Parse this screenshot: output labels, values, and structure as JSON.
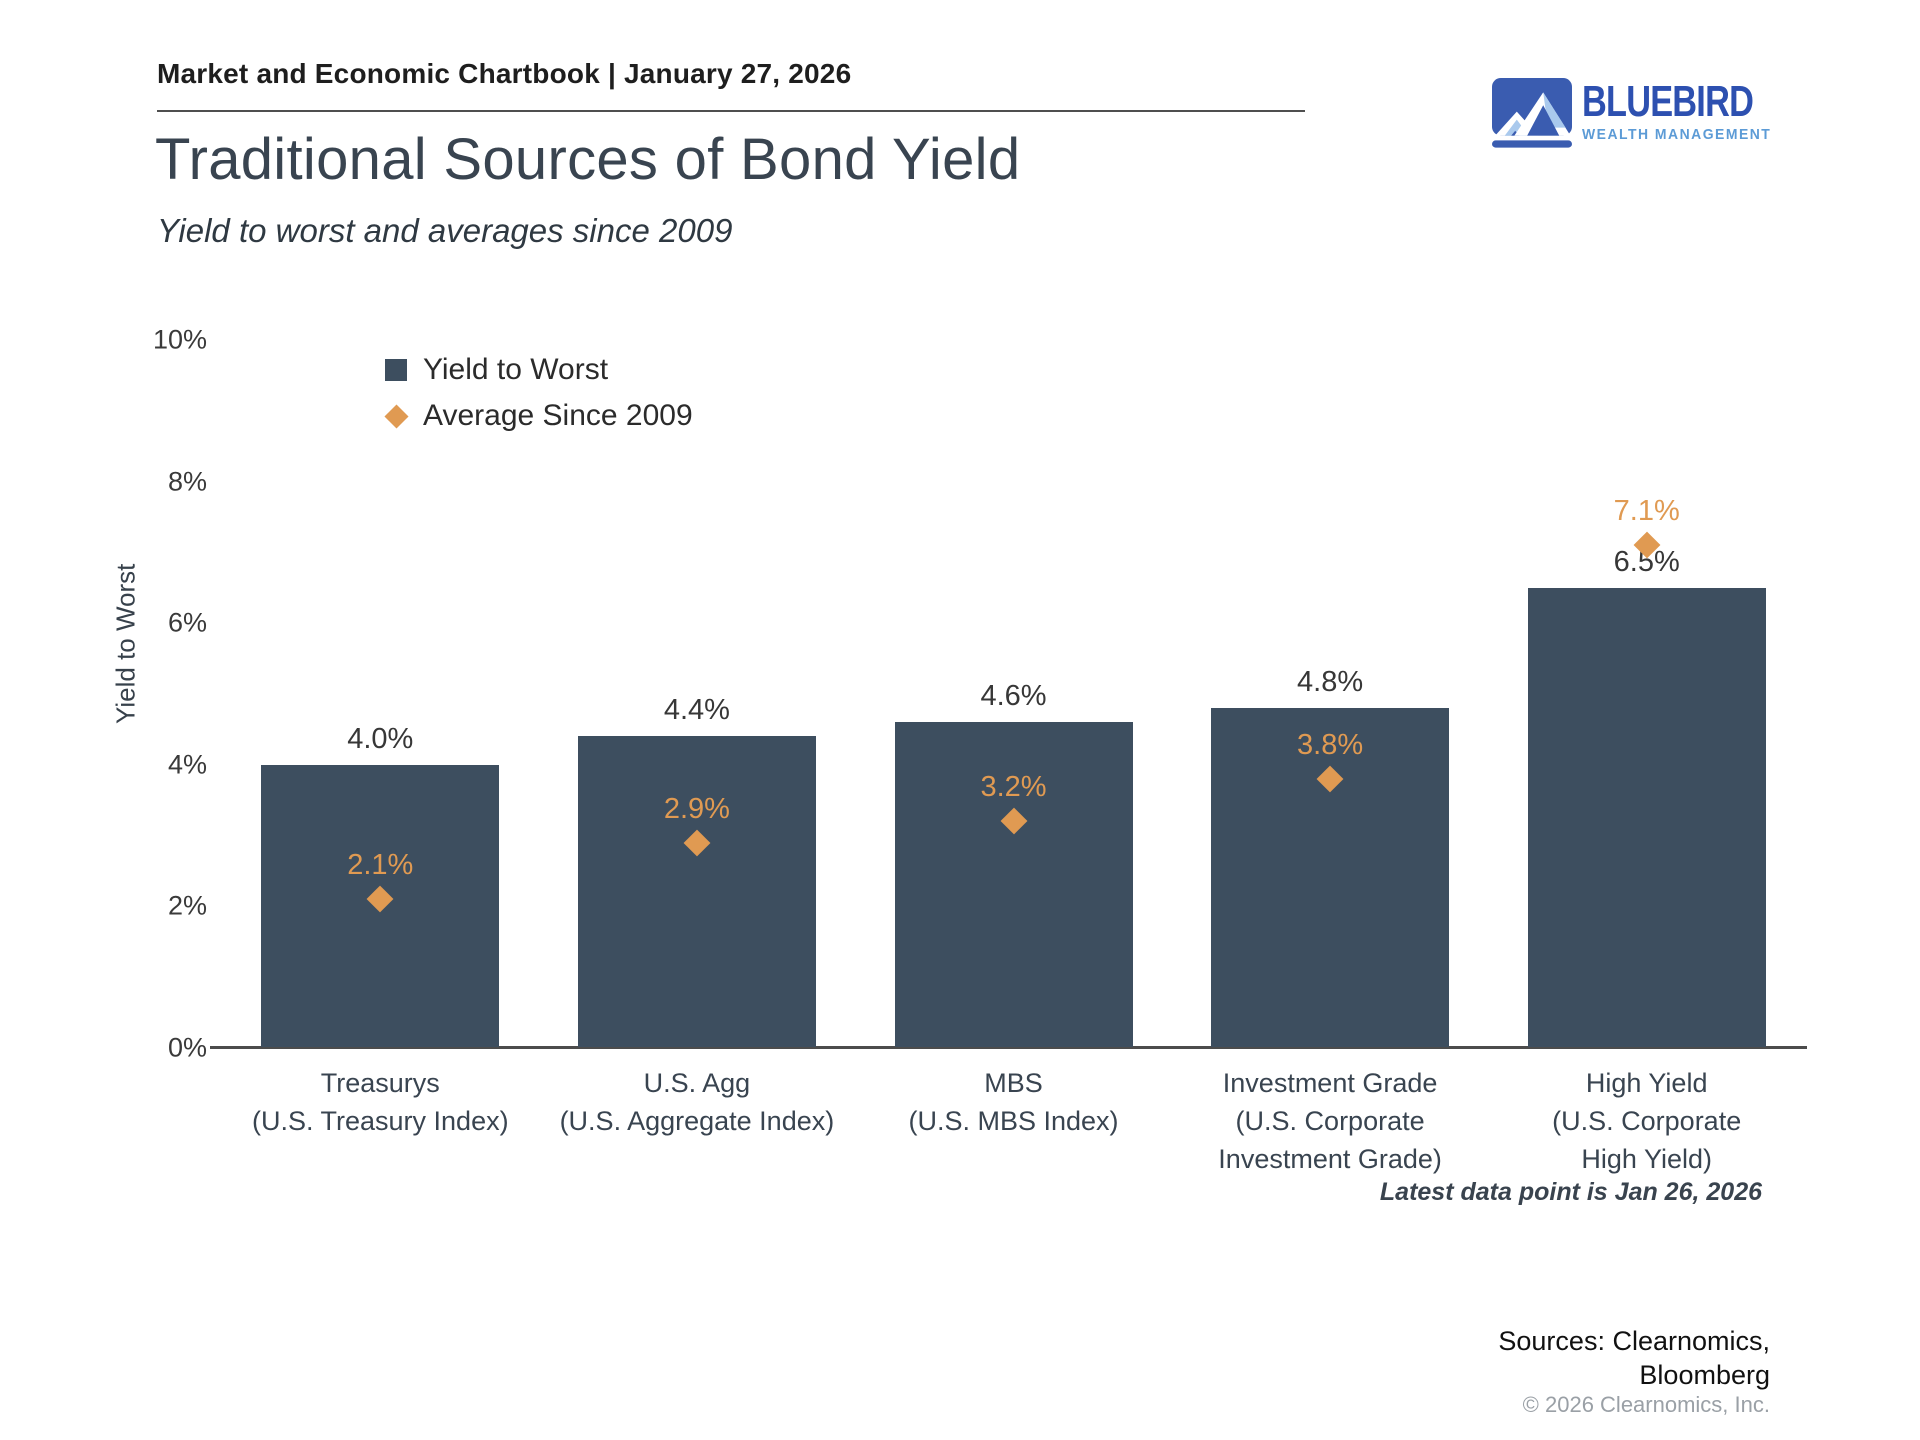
{
  "header": {
    "chartbook_label": "Market and Economic Chartbook | January 27, 2026",
    "logo_name": "BLUEBIRD",
    "logo_tagline": "WEALTH MANAGEMENT",
    "logo_colors": {
      "primary_blue": "#3a5cb0",
      "light_blue": "#a9c9ed",
      "name_blue": "#2d50b0",
      "tagline_blue": "#5c9bd6"
    }
  },
  "title": "Traditional Sources of Bond Yield",
  "subtitle": "Yield to worst and averages since 2009",
  "chart_data": {
    "type": "bar",
    "title": "Traditional Sources of Bond Yield",
    "xlabel": "",
    "ylabel": "Yield to Worst",
    "ylim": [
      0,
      10
    ],
    "ytick_values": [
      0,
      2,
      4,
      6,
      8,
      10
    ],
    "ytick_labels": [
      "0%",
      "2%",
      "4%",
      "6%",
      "8%",
      "10%"
    ],
    "grid": false,
    "legend_position": "upper-left-inside",
    "categories": [
      [
        "Treasurys",
        "(U.S. Treasury Index)"
      ],
      [
        "U.S. Agg",
        "(U.S. Aggregate Index)"
      ],
      [
        "MBS",
        "(U.S. MBS Index)"
      ],
      [
        "Investment Grade",
        "(U.S. Corporate",
        "Investment Grade)"
      ],
      [
        "High Yield",
        "(U.S. Corporate",
        "High Yield)"
      ]
    ],
    "series": [
      {
        "name": "Yield to Worst",
        "type": "bar",
        "color": "#3d4e5f",
        "values": [
          4.0,
          4.4,
          4.6,
          4.8,
          6.5
        ],
        "labels": [
          "4.0%",
          "4.4%",
          "4.6%",
          "4.8%",
          "6.5%"
        ],
        "label_color": "#373737"
      },
      {
        "name": "Average Since 2009",
        "type": "scatter",
        "marker": "diamond",
        "color": "#e09a52",
        "values": [
          2.1,
          2.9,
          3.2,
          3.8,
          7.1
        ],
        "labels": [
          "2.1%",
          "2.9%",
          "3.2%",
          "3.8%",
          "7.1%"
        ],
        "label_color": "#e09a52"
      }
    ],
    "note": "Latest data point is Jan 26, 2026"
  },
  "footer": {
    "sources_line1": "Sources: Clearnomics,",
    "sources_line2": "Bloomberg",
    "copyright": "© 2026 Clearnomics, Inc."
  }
}
